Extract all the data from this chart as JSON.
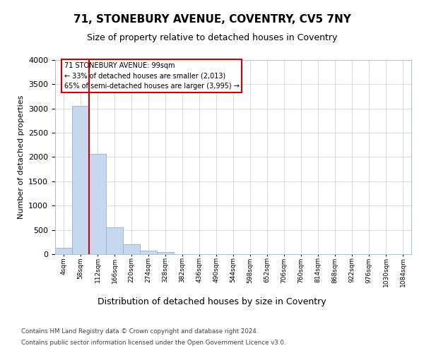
{
  "title_line1": "71, STONEBURY AVENUE, COVENTRY, CV5 7NY",
  "title_line2": "Size of property relative to detached houses in Coventry",
  "xlabel": "Distribution of detached houses by size in Coventry",
  "ylabel": "Number of detached properties",
  "footer_line1": "Contains HM Land Registry data © Crown copyright and database right 2024.",
  "footer_line2": "Contains public sector information licensed under the Open Government Licence v3.0.",
  "annotation_line1": "71 STONEBURY AVENUE: 99sqm",
  "annotation_line2": "← 33% of detached houses are smaller (2,013)",
  "annotation_line3": "65% of semi-detached houses are larger (3,995) →",
  "bar_color": "#c5d8f0",
  "bar_edge_color": "#a0b8d8",
  "vline_color": "#cc0000",
  "grid_color": "#d0d8e8",
  "categories": [
    "4sqm",
    "58sqm",
    "112sqm",
    "166sqm",
    "220sqm",
    "274sqm",
    "328sqm",
    "382sqm",
    "436sqm",
    "490sqm",
    "544sqm",
    "598sqm",
    "652sqm",
    "706sqm",
    "760sqm",
    "814sqm",
    "868sqm",
    "922sqm",
    "976sqm",
    "1030sqm",
    "1084sqm"
  ],
  "values": [
    130,
    3060,
    2060,
    560,
    210,
    70,
    50,
    0,
    0,
    0,
    0,
    0,
    0,
    0,
    0,
    0,
    0,
    0,
    0,
    0,
    0
  ],
  "ylim": [
    0,
    4000
  ],
  "yticks": [
    0,
    500,
    1000,
    1500,
    2000,
    2500,
    3000,
    3500,
    4000
  ],
  "vline_x_pos": 1.5,
  "figsize": [
    6.0,
    5.0
  ],
  "dpi": 100
}
